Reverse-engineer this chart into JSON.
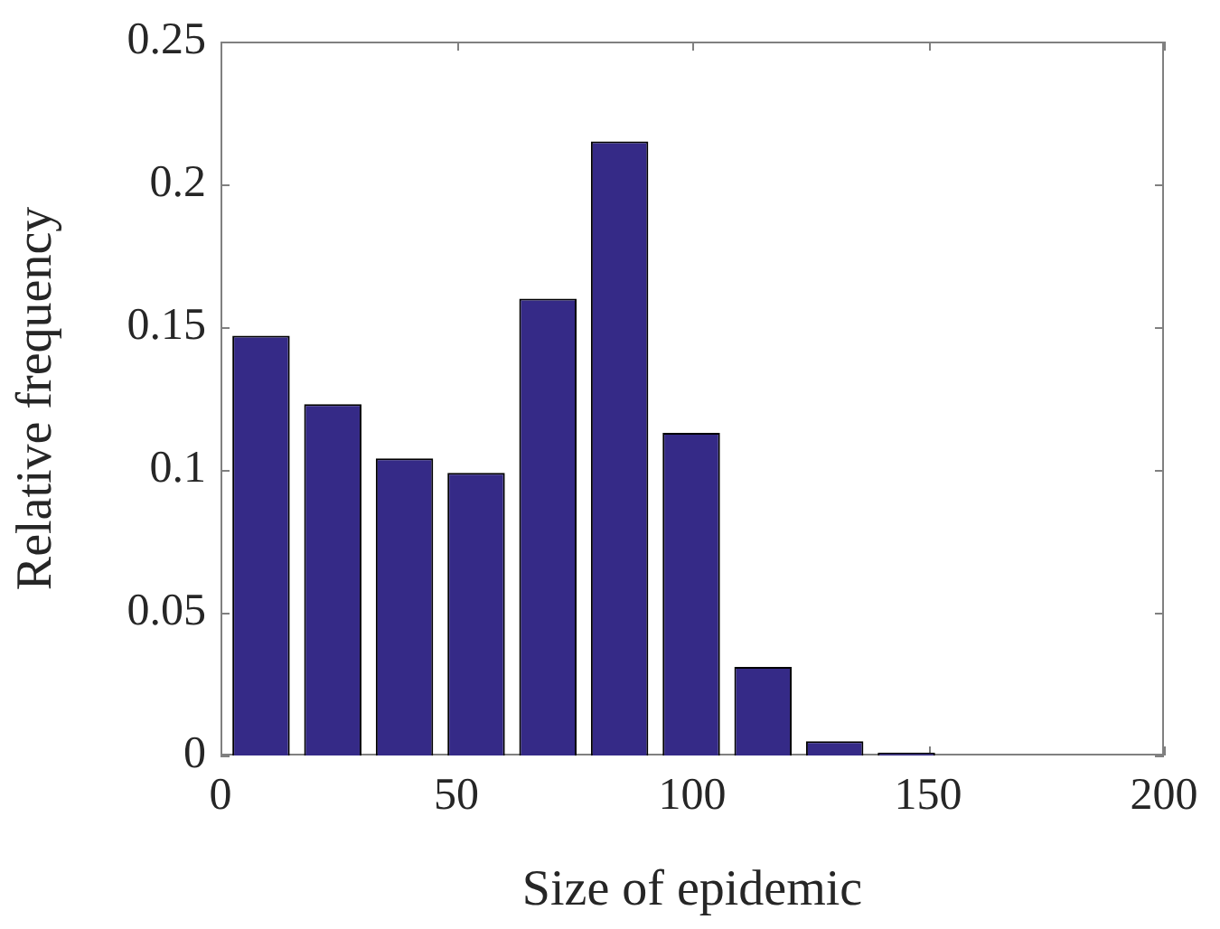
{
  "chart_data": {
    "type": "histogram",
    "xlabel": "Size of epidemic",
    "ylabel": "Relative frequency",
    "bins": [
      1,
      16.2,
      31.4,
      46.6,
      61.8,
      77,
      92.2,
      107.4,
      122.6,
      137.8,
      153
    ],
    "values": [
      0.147,
      0.123,
      0.104,
      0.099,
      0.16,
      0.215,
      0.113,
      0.031,
      0.005,
      0.001
    ],
    "color": "#352a87",
    "xlim": [
      0,
      200
    ],
    "xticks": [
      0,
      50,
      100,
      150,
      200
    ],
    "ylim": [
      0,
      0.25
    ],
    "yticks": [
      0,
      0.05,
      0.1,
      0.15,
      0.2,
      0.25
    ],
    "grid": false,
    "legend": false
  }
}
